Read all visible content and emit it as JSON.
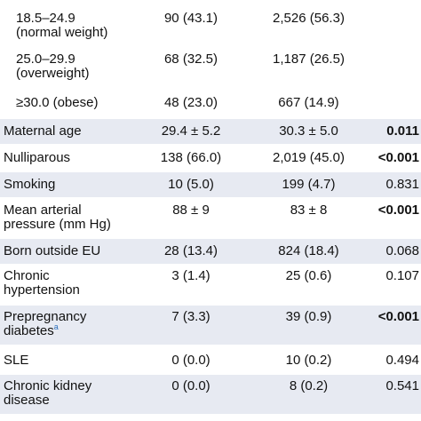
{
  "top_cut_label": "",
  "rows": [
    {
      "label": [
        "18.5–24.9",
        "(normal weight)"
      ],
      "indent": true,
      "c1": "90 (43.1)",
      "c2": "2,526 (56.3)",
      "p": "",
      "p_bold": false,
      "shade": false
    },
    {
      "label": [
        "25.0–29.9",
        "(overweight)"
      ],
      "indent": true,
      "c1": "68 (32.5)",
      "c2": "1,187 (26.5)",
      "p": "",
      "p_bold": false,
      "shade": false
    },
    {
      "label": [
        "≥30.0 (obese)"
      ],
      "indent": true,
      "c1": "48 (23.0)",
      "c2": "667 (14.9)",
      "p": "",
      "p_bold": false,
      "shade": false
    },
    {
      "label": [
        "Maternal age"
      ],
      "indent": false,
      "c1": "29.4 ± 5.2",
      "c2": "30.3 ± 5.0",
      "p": "0.011",
      "p_bold": true,
      "shade": true
    },
    {
      "label": [
        "Nulliparous"
      ],
      "indent": false,
      "c1": "138 (66.0)",
      "c2": "2,019 (45.0)",
      "p": "<0.001",
      "p_bold": true,
      "shade": false
    },
    {
      "label": [
        "Smoking"
      ],
      "indent": false,
      "c1": "10 (5.0)",
      "c2": "199 (4.7)",
      "p": "0.831",
      "p_bold": false,
      "shade": true
    },
    {
      "label": [
        "Mean arterial",
        "pressure (mm Hg)"
      ],
      "indent": false,
      "c1": "88 ± 9",
      "c2": "83 ± 8",
      "p": "<0.001",
      "p_bold": true,
      "shade": false
    },
    {
      "label": [
        "Born outside EU"
      ],
      "indent": false,
      "c1": "28 (13.4)",
      "c2": "824 (18.4)",
      "p": "0.068",
      "p_bold": false,
      "shade": true
    },
    {
      "label": [
        "Chronic",
        "hypertension"
      ],
      "indent": false,
      "c1": "3 (1.4)",
      "c2": "25 (0.6)",
      "p": "0.107",
      "p_bold": false,
      "shade": false
    },
    {
      "label": [
        "Prepregnancy",
        "diabetes"
      ],
      "label_sup": "a",
      "indent": false,
      "c1": "7 (3.3)",
      "c2": "39 (0.9)",
      "p": "<0.001",
      "p_bold": true,
      "shade": true
    },
    {
      "label": [
        "SLE"
      ],
      "indent": false,
      "c1": "0 (0.0)",
      "c2": "10 (0.2)",
      "p": "0.494",
      "p_bold": false,
      "shade": false
    },
    {
      "label": [
        "Chronic kidney",
        "disease"
      ],
      "indent": false,
      "c1": "0 (0.0)",
      "c2": "8 (0.2)",
      "p": "0.541",
      "p_bold": false,
      "shade": true
    }
  ]
}
